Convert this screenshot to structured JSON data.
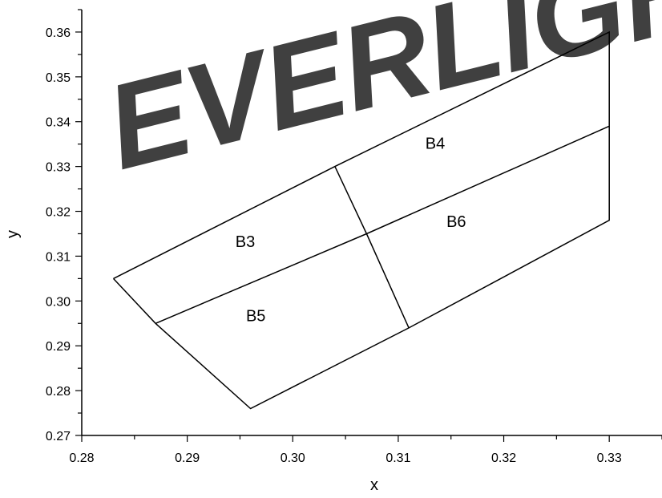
{
  "chart_data": {
    "type": "line",
    "title": "",
    "xlabel": "x",
    "ylabel": "y",
    "xlim": [
      0.28,
      0.335
    ],
    "ylim": [
      0.27,
      0.365
    ],
    "x_ticks": [
      "0.28",
      "0.29",
      "0.30",
      "0.31",
      "0.32",
      "0.33"
    ],
    "y_ticks": [
      "0.27",
      "0.28",
      "0.29",
      "0.30",
      "0.31",
      "0.32",
      "0.33",
      "0.34",
      "0.35",
      "0.36"
    ],
    "grid": false,
    "watermark": "EVERLIGHT",
    "series": [
      {
        "points": [
          [
            0.283,
            0.305
          ],
          [
            0.304,
            0.33
          ],
          [
            0.33,
            0.36
          ],
          [
            0.33,
            0.318
          ],
          [
            0.311,
            0.294
          ],
          [
            0.296,
            0.276
          ],
          [
            0.287,
            0.295
          ],
          [
            0.283,
            0.305
          ]
        ]
      },
      {
        "points": [
          [
            0.287,
            0.295
          ],
          [
            0.307,
            0.315
          ],
          [
            0.33,
            0.339
          ]
        ]
      },
      {
        "points": [
          [
            0.304,
            0.33
          ],
          [
            0.307,
            0.315
          ],
          [
            0.311,
            0.294
          ]
        ]
      }
    ],
    "region_labels": [
      {
        "text": "B3",
        "x": 0.2955,
        "y": 0.312
      },
      {
        "text": "B4",
        "x": 0.3135,
        "y": 0.334
      },
      {
        "text": "B5",
        "x": 0.2965,
        "y": 0.2955
      },
      {
        "text": "B6",
        "x": 0.3155,
        "y": 0.3165
      }
    ]
  }
}
